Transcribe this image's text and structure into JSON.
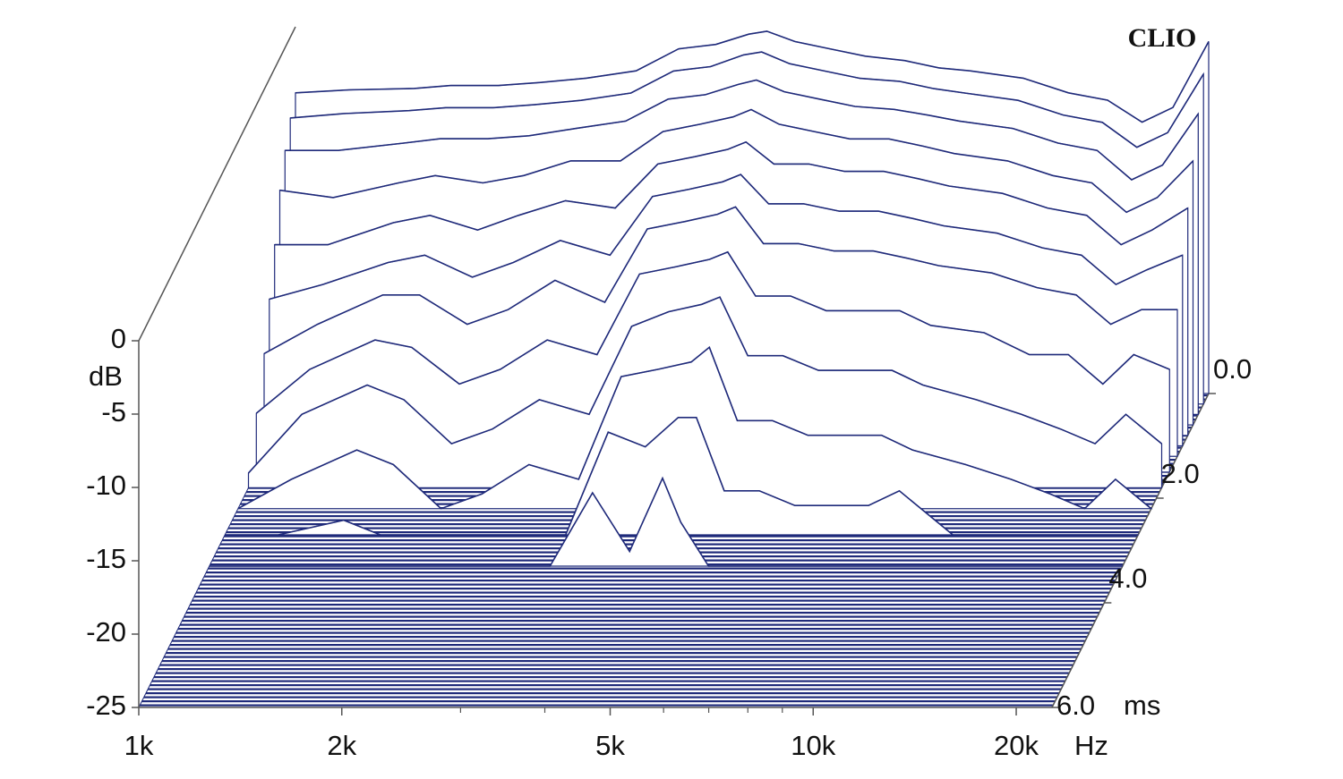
{
  "chart_data": {
    "type": "waterfall",
    "brand": "CLIO",
    "y_label": "dB",
    "x_unit": "Hz",
    "z_unit": "ms",
    "color": "#1f2a7a",
    "log_x": true,
    "xlim": [
      1000,
      22600
    ],
    "xticks": [
      {
        "value": 1000,
        "label": "1k"
      },
      {
        "value": 2000,
        "label": "2k"
      },
      {
        "value": 5000,
        "label": "5k"
      },
      {
        "value": 10000,
        "label": "10k"
      },
      {
        "value": 20000,
        "label": "20k"
      }
    ],
    "xminor": [
      3000,
      4000,
      6000,
      7000,
      8000,
      9000
    ],
    "ylim": [
      -25,
      0
    ],
    "yticks": [
      0,
      -5,
      -10,
      -15,
      -20,
      -25
    ],
    "zlim": [
      0,
      6
    ],
    "zticks": [
      {
        "value": 0,
        "label": "0.0"
      },
      {
        "value": 2,
        "label": "2.0"
      },
      {
        "value": 4,
        "label": "4.0"
      },
      {
        "value": 6,
        "label": "6.0"
      }
    ],
    "x": [
      1000,
      1200,
      1500,
      1700,
      2000,
      2300,
      2700,
      3200,
      3700,
      4200,
      4700,
      5000,
      5500,
      6200,
      7000,
      8000,
      9000,
      10000,
      12000,
      14000,
      16000,
      18000,
      20000,
      22600
    ],
    "series": [
      {
        "t": 0,
        "values": [
          -4.5,
          -4.3,
          -4.2,
          -4.0,
          -4.0,
          -3.8,
          -3.5,
          -3.0,
          -1.5,
          -1.2,
          -0.5,
          -0.3,
          -1.0,
          -1.5,
          -2.0,
          -2.3,
          -2.8,
          -3.0,
          -3.5,
          -4.5,
          -5.0,
          -6.5,
          -5.5,
          -1.0
        ]
      },
      {
        "t": 0.2,
        "values": [
          -5.5,
          -5.2,
          -5.0,
          -4.8,
          -4.8,
          -4.6,
          -4.3,
          -3.8,
          -2.3,
          -2.0,
          -1.2,
          -1.0,
          -1.8,
          -2.3,
          -2.8,
          -3.0,
          -3.5,
          -3.8,
          -4.3,
          -5.3,
          -5.8,
          -7.5,
          -6.5,
          -2.5
        ]
      },
      {
        "t": 0.4,
        "values": [
          -7,
          -7,
          -6.5,
          -6.2,
          -6.2,
          -6,
          -5.5,
          -5,
          -3.5,
          -3.2,
          -2.5,
          -2.2,
          -3,
          -3.5,
          -4,
          -4.2,
          -4.6,
          -5,
          -5.5,
          -6.5,
          -7,
          -9,
          -8,
          -4.5
        ]
      },
      {
        "t": 0.6,
        "values": [
          -9,
          -9.5,
          -8.5,
          -8,
          -8.5,
          -8,
          -7,
          -7,
          -5,
          -4.5,
          -4,
          -3.5,
          -4.5,
          -5,
          -5.5,
          -5.5,
          -6,
          -6.5,
          -7,
          -8,
          -8.5,
          -10.5,
          -9.5,
          -7
        ]
      },
      {
        "t": 0.8,
        "values": [
          -12,
          -12,
          -10.5,
          -10,
          -11,
          -10,
          -9,
          -9.5,
          -6.5,
          -6,
          -5.5,
          -5,
          -6.5,
          -6.5,
          -7,
          -7,
          -7.5,
          -8,
          -8.5,
          -9.5,
          -10,
          -12,
          -11,
          -9.5
        ]
      },
      {
        "t": 1.0,
        "values": [
          -15,
          -14,
          -12.5,
          -12,
          -13.5,
          -12.5,
          -11,
          -12,
          -8,
          -7.5,
          -7,
          -6.5,
          -8.5,
          -8.5,
          -9,
          -9,
          -9.5,
          -10,
          -10.5,
          -11.5,
          -12,
          -14,
          -13,
          -12
        ]
      },
      {
        "t": 1.2,
        "values": [
          -18,
          -16,
          -14,
          -14,
          -16,
          -15,
          -13,
          -14.5,
          -9.5,
          -9,
          -8.5,
          -8,
          -10.5,
          -10.5,
          -11,
          -11,
          -11.5,
          -12,
          -12.5,
          -13.5,
          -14,
          -16,
          -15,
          -15
        ]
      },
      {
        "t": 1.5,
        "values": [
          -21,
          -18,
          -16,
          -16.5,
          -19,
          -18,
          -16,
          -17,
          -11.5,
          -11,
          -10.5,
          -10,
          -13,
          -13,
          -14,
          -14,
          -14,
          -15,
          -15.5,
          -17,
          -17,
          -19,
          -17,
          -18
        ]
      },
      {
        "t": 1.8,
        "values": [
          -24,
          -20,
          -18,
          -19,
          -22,
          -21,
          -19,
          -20,
          -14,
          -13,
          -12.5,
          -12,
          -16,
          -16,
          -17,
          -17,
          -17,
          -18,
          -19,
          -20,
          -21,
          -22,
          -20,
          -22
        ]
      },
      {
        "t": 2.2,
        "values": [
          -25,
          -23,
          -21,
          -22,
          -25,
          -24,
          -22,
          -23,
          -16,
          -15.5,
          -15,
          -14,
          -19,
          -19,
          -20,
          -20,
          -20,
          -21,
          -22,
          -23,
          -24,
          -25,
          -23,
          -25
        ]
      },
      {
        "t": 2.7,
        "values": [
          -25,
          -25,
          -24,
          -25,
          -25,
          -25,
          -25,
          -25,
          -18,
          -19,
          -17,
          -17,
          -22,
          -22,
          -23,
          -23,
          -23,
          -22,
          -25,
          -25,
          -25,
          -25,
          -25,
          -25
        ]
      },
      {
        "t": 3.3,
        "values": [
          -25,
          -25,
          -25,
          -25,
          -25,
          -25,
          -25,
          -25,
          -20,
          -24,
          -19,
          -22,
          -25,
          -25,
          -25,
          -25,
          -25,
          -25,
          -25,
          -25,
          -25,
          -25,
          -25,
          -25
        ]
      }
    ]
  }
}
